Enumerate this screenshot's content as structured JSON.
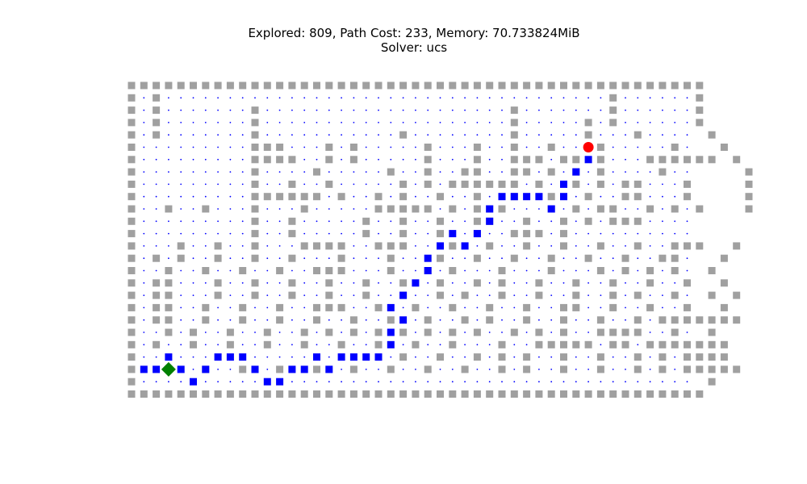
{
  "figure": {
    "title_line1": "Explored: 809, Path Cost: 233, Memory: 70.733824MiB",
    "title_line2": "Solver: ucs"
  },
  "chart_data": {
    "type": "scatter",
    "title": "Explored: 809, Path Cost: 233, Memory: 70.733824MiB\nSolver: ucs",
    "stats": {
      "explored": 809,
      "path_cost": 233,
      "memory": "70.733824MiB",
      "solver": "ucs"
    },
    "xlim": [
      0,
      46
    ],
    "ylim": [
      0,
      26
    ],
    "y_axis": "row index, 0 at top",
    "axes_visible": false,
    "grid": false,
    "legend": "none",
    "colors": {
      "wall": "#a0a0a0",
      "explored": "#0000ff",
      "path": "#0000ff",
      "start": "#008000",
      "goal": "#ff0000"
    },
    "series": [
      {
        "role": "wall",
        "marker": "square",
        "rows": [
          "...............................................",
          ". .                                    .      .",
          ". .       .                    .       .      .",
          ". .       .                    .     . .      .",
          ". .       .           .        .     .   .     .",
          ".         ...   . .     .   .  .  .   .     .   .",
          ".         ....  . .     .   .  ... .. .   ...... .",
          ".         .    .     .  .  ..  .. . . .    .      .",
          ".         .  .  .     . . ...... .  . . ..   .    .",
          ".         ...... .  . .  .  .  .  .  .  ..   .    .",
          ".  .  .   .   .     ..... . ...   . . ..  . . .   .",
          ".         .  .     .  .  .  ..  .  . . ...     ",
          ".         .  .     .  .  .  .  ... .     ",
          ".   .  .  .   ....  ...   .  .  .  .  .  .  ...  .",
          ". . .  .  .  .   .   .   .  .  .  .  .  .  ..   .",
          ".  .  .  .  .  ...   .  . .   .   .   . . . .  .",
          ". ..   .  .  .  .  .  .  .  . .  .  .  .  .  .  .",
          ". ..   .  .  .  .  .  .  . .  .  .  .  . .  .  . .",
          ". ..  .  .  .  ...  .  .  .  .  .  ..  .  .  .  .",
          ". ..  .  .  .  .  .  .  .  . .  .  .  .  . .......",
          ".  . .  .  .  . . . . . . . .  . . .  ....  .  .",
          ". .  .  .  .  .  .  .  .  .   .  ..... .. .......",
          ".                     .  .  . . .  .  .  . . ....",
          ".  .  .  .  .  .  .  .  .  .  . .  .  .  . . .....",
          ".                                              .",
          "..............................................."
        ]
      },
      {
        "role": "path",
        "marker": "square",
        "points": [
          [
            1,
            23
          ],
          [
            2,
            23
          ],
          [
            3,
            22
          ],
          [
            4,
            23
          ],
          [
            5,
            24
          ],
          [
            6,
            23
          ],
          [
            7,
            22
          ],
          [
            8,
            22
          ],
          [
            9,
            22
          ],
          [
            10,
            23
          ],
          [
            11,
            24
          ],
          [
            12,
            24
          ],
          [
            13,
            23
          ],
          [
            14,
            23
          ],
          [
            15,
            22
          ],
          [
            16,
            23
          ],
          [
            17,
            22
          ],
          [
            18,
            22
          ],
          [
            19,
            22
          ],
          [
            20,
            22
          ],
          [
            21,
            21
          ],
          [
            21,
            20
          ],
          [
            22,
            19
          ],
          [
            21,
            18
          ],
          [
            22,
            17
          ],
          [
            23,
            16
          ],
          [
            24,
            15
          ],
          [
            24,
            14
          ],
          [
            25,
            13
          ],
          [
            26,
            12
          ],
          [
            27,
            13
          ],
          [
            28,
            12
          ],
          [
            29,
            11
          ],
          [
            29,
            10
          ],
          [
            30,
            9
          ],
          [
            31,
            9
          ],
          [
            32,
            9
          ],
          [
            33,
            9
          ],
          [
            34,
            10
          ],
          [
            35,
            9
          ],
          [
            35,
            8
          ],
          [
            36,
            7
          ],
          [
            37,
            6
          ],
          [
            37,
            5
          ]
        ]
      },
      {
        "role": "start",
        "marker": "diamond",
        "points": [
          [
            3,
            23
          ]
        ]
      },
      {
        "role": "goal",
        "marker": "circle",
        "points": [
          [
            37,
            5
          ]
        ]
      },
      {
        "role": "explored",
        "marker": "dot",
        "count": 809
      }
    ]
  }
}
